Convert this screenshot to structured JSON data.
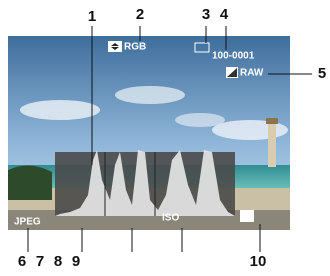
{
  "callouts": [
    "1",
    "2",
    "3",
    "4",
    "5",
    "6",
    "7",
    "8",
    "9",
    "10"
  ],
  "overlay": {
    "mode": "RGB",
    "file_number": "100-0001",
    "format": "RAW",
    "quality": "JPEG",
    "iso": "ISO"
  }
}
